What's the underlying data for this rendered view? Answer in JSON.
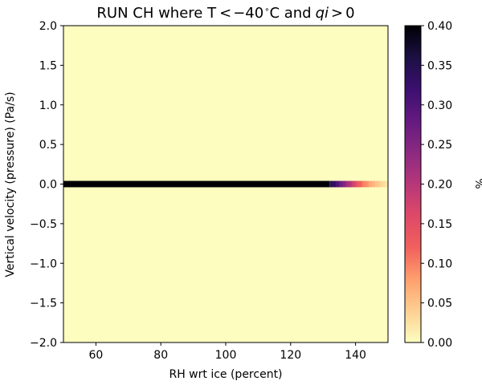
{
  "chart_data": {
    "type": "heatmap",
    "title": "RUN CH where T < −40°C and qi > 0",
    "title_parts": [
      "RUN CH where T",
      "<",
      "−40",
      "∘",
      "C and",
      "qi",
      ">",
      "0"
    ],
    "xlabel": "RH wrt ice (percent)",
    "ylabel": "Vertical velocity (pressure) (Pa/s)",
    "xlim": [
      50,
      150
    ],
    "ylim": [
      -2.0,
      2.0
    ],
    "x_ticks": [
      60,
      80,
      100,
      120,
      140
    ],
    "x_tick_labels": [
      "60",
      "80",
      "100",
      "120",
      "140"
    ],
    "y_ticks": [
      2.0,
      1.5,
      1.0,
      0.5,
      0.0,
      -0.5,
      -1.0,
      -1.5,
      -2.0
    ],
    "y_tick_labels": [
      "2.0",
      "1.5",
      "1.0",
      "0.5",
      "0.0",
      "−0.5",
      "−1.0",
      "−1.5",
      "−2.0"
    ],
    "bin_width_x": 1,
    "row_y_range": [
      -0.04,
      0.04
    ],
    "background_value": 0.0,
    "saturated_until_x": 132,
    "row_cells": [
      {
        "x": 132,
        "value": 0.34
      },
      {
        "x": 133,
        "value": 0.33
      },
      {
        "x": 134,
        "value": 0.3
      },
      {
        "x": 135,
        "value": 0.27
      },
      {
        "x": 136,
        "value": 0.25
      },
      {
        "x": 137,
        "value": 0.22
      },
      {
        "x": 138,
        "value": 0.2
      },
      {
        "x": 139,
        "value": 0.17
      },
      {
        "x": 140,
        "value": 0.14
      },
      {
        "x": 141,
        "value": 0.12
      },
      {
        "x": 142,
        "value": 0.1
      },
      {
        "x": 143,
        "value": 0.09
      },
      {
        "x": 144,
        "value": 0.07
      },
      {
        "x": 145,
        "value": 0.06
      },
      {
        "x": 146,
        "value": 0.05
      },
      {
        "x": 147,
        "value": 0.04
      },
      {
        "x": 148,
        "value": 0.03
      },
      {
        "x": 149,
        "value": 0.02
      }
    ],
    "colorbar": {
      "label": "%",
      "range": [
        0.0,
        0.4
      ],
      "ticks": [
        0.0,
        0.05,
        0.1,
        0.15,
        0.2,
        0.25,
        0.3,
        0.35,
        0.4
      ],
      "tick_labels": [
        "0.00",
        "0.05",
        "0.10",
        "0.15",
        "0.20",
        "0.25",
        "0.30",
        "0.35",
        "0.40"
      ],
      "colormap": "magma_r",
      "colormap_stops": [
        {
          "t": 0.0,
          "color": "#fcfdbf"
        },
        {
          "t": 0.1,
          "color": "#fecf92"
        },
        {
          "t": 0.2,
          "color": "#fe9f6d"
        },
        {
          "t": 0.3,
          "color": "#f1605d"
        },
        {
          "t": 0.4,
          "color": "#de4968"
        },
        {
          "t": 0.5,
          "color": "#b73779"
        },
        {
          "t": 0.6,
          "color": "#8c2981"
        },
        {
          "t": 0.7,
          "color": "#641a80"
        },
        {
          "t": 0.8,
          "color": "#3b0f70"
        },
        {
          "t": 0.9,
          "color": "#1c1044"
        },
        {
          "t": 1.0,
          "color": "#000004"
        }
      ]
    },
    "grid": false
  }
}
